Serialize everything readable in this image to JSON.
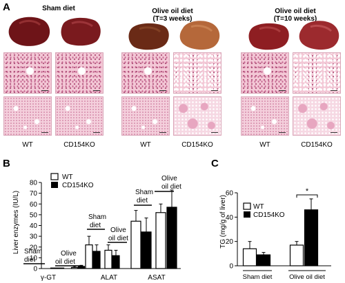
{
  "panel_a": {
    "letter": "A",
    "groups": [
      {
        "title_line1": "Sham diet",
        "title_line2": ""
      },
      {
        "title_line1": "Olive oil diet",
        "title_line2": "(T=3  weeks)"
      },
      {
        "title_line1": "Olive oil diet",
        "title_line2": "(T=10  weeks)"
      }
    ],
    "genotypes": [
      "WT",
      "CD154KO"
    ]
  },
  "colors": {
    "liver_dark": "#6e1418",
    "liver_mid": "#9c2a2e",
    "liver_pale": "#b5683a",
    "he_pink": "#f3c8d6"
  },
  "chart_data": [
    {
      "type": "bar",
      "panel": "B",
      "ylabel": "Liver enzymes (IU/L)",
      "ylim": [
        0,
        80
      ],
      "yticks": [
        0,
        10,
        20,
        30,
        40,
        50,
        60,
        70,
        80
      ],
      "groups": [
        "γ-GT",
        "ALAT",
        "ASAT"
      ],
      "conditions": [
        "Sham diet",
        "Olive oil diet"
      ],
      "legend": [
        "WT",
        "CD154KO"
      ],
      "series": [
        {
          "name": "WT",
          "values": [
            [
              0,
              1
            ],
            [
              22,
              17
            ],
            [
              44,
              52
            ]
          ],
          "errors": [
            [
              0,
              1
            ],
            [
              8,
              5
            ],
            [
              10,
              8
            ]
          ]
        },
        {
          "name": "CD154KO",
          "values": [
            [
              0,
              2
            ],
            [
              16,
              12
            ],
            [
              34,
              57
            ]
          ],
          "errors": [
            [
              0,
              1
            ],
            [
              6,
              5
            ],
            [
              13,
              16
            ]
          ]
        }
      ],
      "annotations": {
        "gt_sham": [
          "Sham",
          "diet"
        ],
        "gt_olive": [
          "Olive",
          "oil diet"
        ],
        "alat_sham": [
          "Sham",
          "diet"
        ],
        "alat_olive": [
          "Olive",
          "oil diet"
        ],
        "asat_sham": [
          "Sham",
          "diet"
        ],
        "asat_olive": [
          "Olive",
          "oil diet"
        ]
      }
    },
    {
      "type": "bar",
      "panel": "C",
      "ylabel": "TG (mg/g of liver)",
      "ylim": [
        0,
        60
      ],
      "yticks": [
        0,
        20,
        40,
        60
      ],
      "categories": [
        "Sham diet",
        "Olive oil diet"
      ],
      "legend": [
        "WT",
        "CD154KO"
      ],
      "series": [
        {
          "name": "WT",
          "values": [
            14,
            17
          ],
          "errors": [
            6,
            3
          ]
        },
        {
          "name": "CD154KO",
          "values": [
            9,
            46
          ],
          "errors": [
            2,
            9
          ]
        }
      ],
      "significance": "*"
    }
  ]
}
